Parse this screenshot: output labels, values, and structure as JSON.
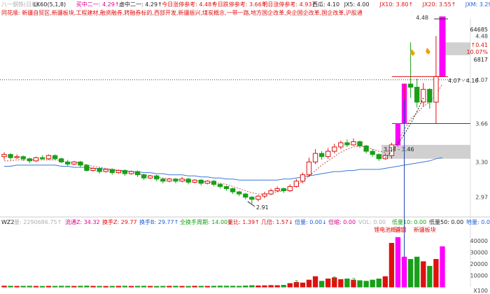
{
  "header": {
    "row1": [
      {
        "text": "八一钢铁(日线)",
        "color": "#b0b0b0"
      },
      {
        "text": "LK60(5,1,8)",
        "color": "#222222"
      },
      {
        "text": "买中二一: 4.29↑",
        "color": "#e0008f"
      },
      {
        "text": "虚中二一: 4.29↑",
        "color": "#222222"
      },
      {
        "text": "今日涨停参考: 4.48↑",
        "color": "#e01010"
      },
      {
        "text": "今日跌停参考: 3.66↑",
        "color": "#e01010"
      },
      {
        "text": "明日涨停参考: 4.93↑",
        "color": "#e01010"
      },
      {
        "text": "西瓜: 4.10",
        "color": "#222222"
      },
      {
        "text": "JX5: 4.00",
        "color": "#222222"
      },
      {
        "text": "JX10: 3.80↑",
        "color": "#e01010"
      },
      {
        "text": "JX20: 3.55↑",
        "color": "#e01010"
      },
      {
        "text": "JXM: 3.29↑",
        "color": "#1e5fd8"
      },
      {
        "text": "JX250: -",
        "color": "#e0008f"
      }
    ],
    "row2": "同花顺: 新疆自贸区,新疆板块,工程建材,融资融券,转融券标的,西部开发,新疆振兴,煤炭概念,一带一路,地方国企改革,央企国企改革,国企改革,沪股通"
  },
  "price_axis": {
    "labels": [
      "4.48",
      "64685",
      "4.48",
      "↑0.41",
      "10.07%",
      "6817",
      "4.07",
      "3.66",
      "3.30",
      "2.97"
    ],
    "right_price_labels": [
      "4.48",
      "4.07",
      "3.66",
      "3.30",
      "2.97"
    ],
    "info_labels": [
      "64685",
      "↑0.41",
      "10.07%",
      "6817"
    ]
  },
  "annotations": {
    "high_label": "4.48",
    "range_label": "4.07 - 4.10",
    "mid_label": "3.33 - 3.46",
    "low_label": "2.91"
  },
  "volume_header": [
    {
      "text": "WZ2",
      "color": "#222222"
    },
    {
      "text": "量: 2290686.75↑",
      "color": "#b0b0b0"
    },
    {
      "text": "流通Z: 34.32",
      "color": "#e0008f"
    },
    {
      "text": "换手Z: 29.77",
      "color": "#e01010"
    },
    {
      "text": "换手B: 29.77↑",
      "color": "#1e5fd8"
    },
    {
      "text": "全换手周期: 14.00↓",
      "color": "#18a018"
    },
    {
      "text": "量比: 1.39↑",
      "color": "#e01010"
    },
    {
      "text": "几倍: 1.57↓",
      "color": "#e01010"
    },
    {
      "text": "倍量: 0.00↓",
      "color": "#1e5fd8"
    },
    {
      "text": "倍缩: 0.00",
      "color": "#e0008f"
    },
    {
      "text": "VOL: 0.00",
      "color": "#b0b0b0"
    },
    {
      "text": "低量10: 0.00",
      "color": "#18a018"
    },
    {
      "text": "低量50: 0.00",
      "color": "#222222"
    },
    {
      "text": "地量: 0.00",
      "color": "#1e5fd8"
    },
    {
      "text": "A: 4.32↑",
      "color": "#e01010"
    }
  ],
  "volume_events": [
    "锂电池概念",
    "晋钢",
    "新疆板块"
  ],
  "volume_axis": [
    "40000",
    "30000",
    "20000",
    "10000",
    "X100"
  ],
  "volume_marks": [
    "3",
    "2",
    "3"
  ],
  "colors": {
    "up": "#e01010",
    "down": "#18a018",
    "limit": "#ff00ff",
    "ma_blue": "#3a78d8",
    "ma_red": "#d02020"
  },
  "chart_data": {
    "type": "candlestick",
    "y_range": [
      2.85,
      4.62
    ],
    "volume_range": [
      0,
      45000
    ],
    "candles": [
      [
        3.35,
        3.37,
        3.39,
        3.32
      ],
      [
        3.37,
        3.34,
        3.38,
        3.32
      ],
      [
        3.34,
        3.35,
        3.37,
        3.33
      ],
      [
        3.35,
        3.33,
        3.36,
        3.31
      ],
      [
        3.33,
        3.31,
        3.34,
        3.29
      ],
      [
        3.31,
        3.34,
        3.35,
        3.3
      ],
      [
        3.34,
        3.33,
        3.36,
        3.32
      ],
      [
        3.33,
        3.36,
        3.37,
        3.32
      ],
      [
        3.36,
        3.33,
        3.37,
        3.32
      ],
      [
        3.33,
        3.3,
        3.34,
        3.29
      ],
      [
        3.3,
        3.28,
        3.32,
        3.26
      ],
      [
        3.28,
        3.3,
        3.31,
        3.27
      ],
      [
        3.3,
        3.27,
        3.31,
        3.25
      ],
      [
        3.27,
        3.22,
        3.28,
        3.21
      ],
      [
        3.22,
        3.24,
        3.25,
        3.21
      ],
      [
        3.24,
        3.21,
        3.25,
        3.19
      ],
      [
        3.21,
        3.23,
        3.24,
        3.2
      ],
      [
        3.23,
        3.2,
        3.24,
        3.18
      ],
      [
        3.2,
        3.22,
        3.23,
        3.19
      ],
      [
        3.22,
        3.19,
        3.23,
        3.17
      ],
      [
        3.19,
        3.21,
        3.22,
        3.18
      ],
      [
        3.21,
        3.18,
        3.22,
        3.16
      ],
      [
        3.18,
        3.15,
        3.19,
        3.13
      ],
      [
        3.15,
        3.17,
        3.18,
        3.14
      ],
      [
        3.17,
        3.14,
        3.18,
        3.12
      ],
      [
        3.14,
        3.12,
        3.15,
        3.1
      ],
      [
        3.12,
        3.14,
        3.15,
        3.11
      ],
      [
        3.14,
        3.12,
        3.15,
        3.1
      ],
      [
        3.12,
        3.14,
        3.16,
        3.11
      ],
      [
        3.14,
        3.11,
        3.15,
        3.09
      ],
      [
        3.11,
        3.13,
        3.14,
        3.1
      ],
      [
        3.13,
        3.1,
        3.14,
        3.08
      ],
      [
        3.1,
        3.12,
        3.13,
        3.09
      ],
      [
        3.12,
        3.09,
        3.13,
        3.07
      ],
      [
        3.09,
        3.07,
        3.1,
        3.05
      ],
      [
        3.07,
        3.05,
        3.08,
        3.03
      ],
      [
        3.05,
        3.02,
        3.06,
        3.0
      ],
      [
        3.02,
        3.0,
        3.03,
        2.98
      ],
      [
        3.0,
        2.97,
        3.01,
        2.95
      ],
      [
        2.97,
        2.95,
        2.98,
        2.91
      ],
      [
        2.95,
        2.98,
        2.99,
        2.93
      ],
      [
        2.98,
        3.0,
        3.02,
        2.96
      ],
      [
        3.0,
        3.03,
        3.05,
        2.99
      ],
      [
        3.03,
        3.05,
        3.07,
        3.02
      ],
      [
        3.05,
        3.03,
        3.06,
        3.01
      ],
      [
        3.03,
        3.07,
        3.09,
        3.02
      ],
      [
        3.07,
        3.12,
        3.14,
        3.06
      ],
      [
        3.12,
        3.18,
        3.2,
        3.1
      ],
      [
        3.18,
        3.3,
        3.34,
        3.16
      ],
      [
        3.3,
        3.38,
        3.42,
        3.28
      ],
      [
        3.38,
        3.35,
        3.4,
        3.32
      ],
      [
        3.35,
        3.4,
        3.43,
        3.33
      ],
      [
        3.4,
        3.44,
        3.47,
        3.38
      ],
      [
        3.44,
        3.48,
        3.5,
        3.42
      ],
      [
        3.48,
        3.46,
        3.51,
        3.44
      ],
      [
        3.46,
        3.49,
        3.52,
        3.45
      ],
      [
        3.49,
        3.45,
        3.5,
        3.43
      ],
      [
        3.45,
        3.4,
        3.46,
        3.38
      ],
      [
        3.4,
        3.37,
        3.42,
        3.35
      ],
      [
        3.37,
        3.33,
        3.38,
        3.31
      ],
      [
        3.33,
        3.36,
        3.38,
        3.32
      ],
      [
        3.36,
        3.46,
        3.48,
        3.33
      ],
      [
        3.46,
        3.66,
        3.66,
        3.44
      ],
      [
        3.66,
        4.03,
        4.03,
        3.7
      ],
      [
        4.03,
        4.0,
        4.42,
        3.9
      ],
      [
        4.0,
        3.86,
        4.08,
        3.81
      ],
      [
        3.86,
        3.98,
        4.04,
        3.82
      ],
      [
        3.98,
        3.86,
        3.99,
        3.8
      ],
      [
        3.86,
        4.1,
        4.48,
        3.66
      ],
      [
        4.1,
        4.48,
        4.48,
        4.1
      ]
    ],
    "volume": [
      800,
      700,
      600,
      650,
      700,
      600,
      550,
      650,
      600,
      700,
      650,
      600,
      700,
      800,
      650,
      600,
      550,
      600,
      650,
      700,
      600,
      650,
      700,
      600,
      550,
      600,
      650,
      700,
      600,
      550,
      700,
      650,
      600,
      700,
      800,
      750,
      700,
      650,
      900,
      1200,
      1000,
      1100,
      1300,
      1200,
      1500,
      3000,
      4000,
      3500,
      6000,
      9000,
      5000,
      7000,
      8000,
      6500,
      7000,
      6000,
      5500,
      5000,
      6000,
      7000,
      9000,
      38000,
      43000,
      26000,
      24000,
      26000,
      22000,
      18000,
      24000,
      35000
    ],
    "ma_blue": [
      3.26,
      3.26,
      3.27,
      3.27,
      3.27,
      3.27,
      3.27,
      3.27,
      3.27,
      3.26,
      3.26,
      3.25,
      3.25,
      3.25,
      3.24,
      3.24,
      3.23,
      3.23,
      3.22,
      3.22,
      3.21,
      3.21,
      3.2,
      3.2,
      3.19,
      3.19,
      3.18,
      3.18,
      3.18,
      3.17,
      3.17,
      3.16,
      3.16,
      3.15,
      3.15,
      3.14,
      3.14,
      3.13,
      3.13,
      3.13,
      3.13,
      3.13,
      3.13,
      3.13,
      3.14,
      3.14,
      3.15,
      3.16,
      3.17,
      3.18,
      3.19,
      3.2,
      3.21,
      3.21,
      3.22,
      3.22,
      3.23,
      3.23,
      3.23,
      3.23,
      3.24,
      3.25,
      3.26,
      3.27,
      3.28,
      3.29,
      3.3,
      3.31,
      3.33,
      3.34
    ],
    "ma_red": [
      3.31,
      3.31,
      3.32,
      3.32,
      3.32,
      3.32,
      3.32,
      3.32,
      3.32,
      3.31,
      3.3,
      3.3,
      3.29,
      3.27,
      3.26,
      3.25,
      3.24,
      3.23,
      3.22,
      3.21,
      3.2,
      3.19,
      3.18,
      3.17,
      3.16,
      3.15,
      3.14,
      3.14,
      3.13,
      3.13,
      3.12,
      3.12,
      3.11,
      3.11,
      3.1,
      3.09,
      3.07,
      3.05,
      3.03,
      3.01,
      3.0,
      3.0,
      3.01,
      3.02,
      3.03,
      3.05,
      3.08,
      3.12,
      3.17,
      3.22,
      3.27,
      3.31,
      3.35,
      3.39,
      3.42,
      3.44,
      3.45,
      3.44,
      3.42,
      3.4,
      3.39,
      3.42,
      3.5,
      3.6,
      3.7,
      3.76,
      3.82,
      3.86,
      3.93,
      4.03
    ]
  }
}
